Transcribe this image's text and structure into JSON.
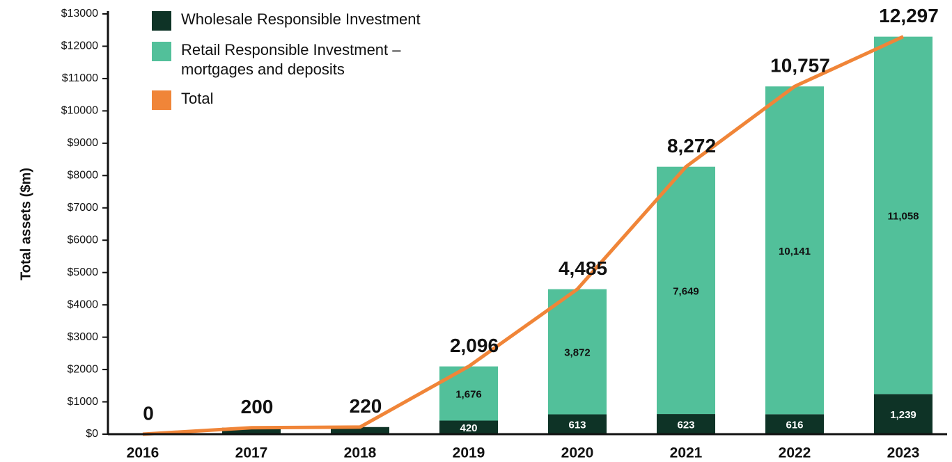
{
  "chart_data": {
    "type": "stacked_bar_line",
    "ylabel": "Total assets ($m)",
    "categories": [
      "2016",
      "2017",
      "2018",
      "2019",
      "2020",
      "2021",
      "2022",
      "2023"
    ],
    "series": [
      {
        "name": "Wholesale Responsible Investment",
        "color": "#0e3326",
        "kind": "bar",
        "values": [
          0,
          200,
          220,
          420,
          613,
          623,
          616,
          1239
        ],
        "value_labels": [
          null,
          null,
          null,
          "420",
          "613",
          "623",
          "616",
          "1,239"
        ]
      },
      {
        "name": "Retail Responsible Investment – mortgages and deposits",
        "color": "#52c09a",
        "kind": "bar",
        "values": [
          0,
          0,
          0,
          1676,
          3872,
          7649,
          10141,
          11058
        ],
        "value_labels": [
          null,
          null,
          null,
          "1,676",
          "3,872",
          "7,649",
          "10,141",
          "11,058"
        ]
      },
      {
        "name": "Total",
        "color": "#f08538",
        "kind": "line",
        "values": [
          0,
          200,
          220,
          2096,
          4485,
          8272,
          10757,
          12297
        ],
        "value_labels": [
          "0",
          "200",
          "220",
          "2,096",
          "4,485",
          "8,272",
          "10,757",
          "12,297"
        ]
      }
    ],
    "ylim": [
      0,
      13000
    ],
    "yticks": [
      {
        "value": 0,
        "label": "$0"
      },
      {
        "value": 1000,
        "label": "$1000"
      },
      {
        "value": 2000,
        "label": "$2000"
      },
      {
        "value": 3000,
        "label": "$3000"
      },
      {
        "value": 4000,
        "label": "$4000"
      },
      {
        "value": 5000,
        "label": "$5000"
      },
      {
        "value": 6000,
        "label": "$6000"
      },
      {
        "value": 7000,
        "label": "$7000"
      },
      {
        "value": 8000,
        "label": "$8000"
      },
      {
        "value": 9000,
        "label": "$9000"
      },
      {
        "value": 10000,
        "label": "$10000"
      },
      {
        "value": 11000,
        "label": "$11000"
      },
      {
        "value": 12000,
        "label": "$12000"
      },
      {
        "value": 13000,
        "label": "$13000"
      }
    ]
  }
}
